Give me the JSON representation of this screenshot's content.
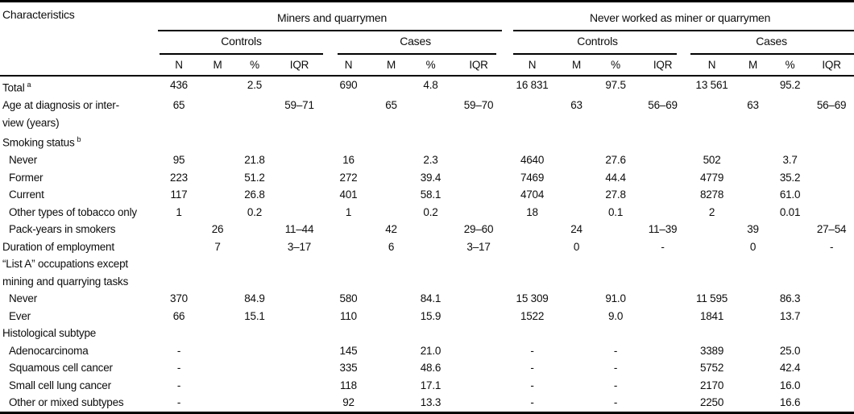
{
  "table": {
    "corner_header": "Characteristics",
    "groups": [
      {
        "label": "Miners and quarrymen",
        "subgroups": [
          {
            "label": "Controls"
          },
          {
            "label": "Cases"
          }
        ]
      },
      {
        "label": "Never worked as miner or quarrymen",
        "subgroups": [
          {
            "label": "Controls"
          },
          {
            "label": "Cases"
          }
        ]
      }
    ],
    "stat_headers": [
      "N",
      "M",
      "%",
      "IQR"
    ],
    "colors": {
      "rule": "#000000",
      "text": "#0d0d0d",
      "background": "#ffffff"
    },
    "rows": [
      {
        "label": "Total",
        "sup": "a",
        "indent": false,
        "cells": [
          "436",
          "",
          "2.5",
          "",
          "690",
          "",
          "4.8",
          "",
          "16 831",
          "",
          "97.5",
          "",
          "13 561",
          "",
          "95.2",
          ""
        ]
      },
      {
        "label": "Age at diagnosis or inter-",
        "label2": "view (years)",
        "indent": false,
        "cells": [
          "65",
          "",
          "",
          "59–71",
          "",
          "65",
          "",
          "59–70",
          "",
          "63",
          "",
          "56–69",
          "",
          "63",
          "",
          "56–69"
        ]
      },
      {
        "label": "Smoking status",
        "sup": "b",
        "indent": false,
        "cells": [
          "",
          "",
          "",
          "",
          "",
          "",
          "",
          "",
          "",
          "",
          "",
          "",
          "",
          "",
          "",
          ""
        ]
      },
      {
        "label": "Never",
        "indent": true,
        "cells": [
          "95",
          "",
          "21.8",
          "",
          "16",
          "",
          "2.3",
          "",
          "4640",
          "",
          "27.6",
          "",
          "502",
          "",
          "3.7",
          ""
        ]
      },
      {
        "label": "Former",
        "indent": true,
        "cells": [
          "223",
          "",
          "51.2",
          "",
          "272",
          "",
          "39.4",
          "",
          "7469",
          "",
          "44.4",
          "",
          "4779",
          "",
          "35.2",
          ""
        ]
      },
      {
        "label": "Current",
        "indent": true,
        "cells": [
          "117",
          "",
          "26.8",
          "",
          "401",
          "",
          "58.1",
          "",
          "4704",
          "",
          "27.8",
          "",
          "8278",
          "",
          "61.0",
          ""
        ]
      },
      {
        "label": "Other types of tobacco only",
        "indent": true,
        "cells": [
          "1",
          "",
          "0.2",
          "",
          "1",
          "",
          "0.2",
          "",
          "18",
          "",
          "0.1",
          "",
          "2",
          "",
          "0.01",
          ""
        ]
      },
      {
        "label": "Pack-years in smokers",
        "indent": true,
        "cells": [
          "",
          "26",
          "",
          "11–44",
          "",
          "42",
          "",
          "29–60",
          "",
          "24",
          "",
          "11–39",
          "",
          "39",
          "",
          "27–54"
        ]
      },
      {
        "label": "Duration of employment",
        "indent": false,
        "cells": [
          "",
          "7",
          "",
          "3–17",
          "",
          "6",
          "",
          "3–17",
          "",
          "0",
          "",
          "-",
          "",
          "0",
          "",
          "-"
        ]
      },
      {
        "label": "“List A” occupations except",
        "label2": "mining and quarrying tasks",
        "indent": false,
        "cells": [
          "",
          "",
          "",
          "",
          "",
          "",
          "",
          "",
          "",
          "",
          "",
          "",
          "",
          "",
          "",
          ""
        ]
      },
      {
        "label": "Never",
        "indent": true,
        "cells": [
          "370",
          "",
          "84.9",
          "",
          "580",
          "",
          "84.1",
          "",
          "15 309",
          "",
          "91.0",
          "",
          "11 595",
          "",
          "86.3",
          ""
        ]
      },
      {
        "label": "Ever",
        "indent": true,
        "cells": [
          "66",
          "",
          "15.1",
          "",
          "110",
          "",
          "15.9",
          "",
          "1522",
          "",
          "9.0",
          "",
          "1841",
          "",
          "13.7",
          ""
        ]
      },
      {
        "label": "Histological subtype",
        "indent": false,
        "cells": [
          "",
          "",
          "",
          "",
          "",
          "",
          "",
          "",
          "",
          "",
          "",
          "",
          "",
          "",
          "",
          ""
        ]
      },
      {
        "label": "Adenocarcinoma",
        "indent": true,
        "cells": [
          "-",
          "",
          "",
          "",
          "145",
          "",
          "21.0",
          "",
          "-",
          "",
          "-",
          "",
          "3389",
          "",
          "25.0",
          ""
        ]
      },
      {
        "label": "Squamous cell cancer",
        "indent": true,
        "cells": [
          "-",
          "",
          "",
          "",
          "335",
          "",
          "48.6",
          "",
          "-",
          "",
          "-",
          "",
          "5752",
          "",
          "42.4",
          ""
        ]
      },
      {
        "label": "Small cell lung cancer",
        "indent": true,
        "cells": [
          "-",
          "",
          "",
          "",
          "118",
          "",
          "17.1",
          "",
          "-",
          "",
          "-",
          "",
          "2170",
          "",
          "16.0",
          ""
        ]
      },
      {
        "label": "Other or mixed subtypes",
        "indent": true,
        "cells": [
          "-",
          "",
          "",
          "",
          "92",
          "",
          "13.3",
          "",
          "-",
          "",
          "-",
          "",
          "2250",
          "",
          "16.6",
          ""
        ]
      }
    ]
  }
}
